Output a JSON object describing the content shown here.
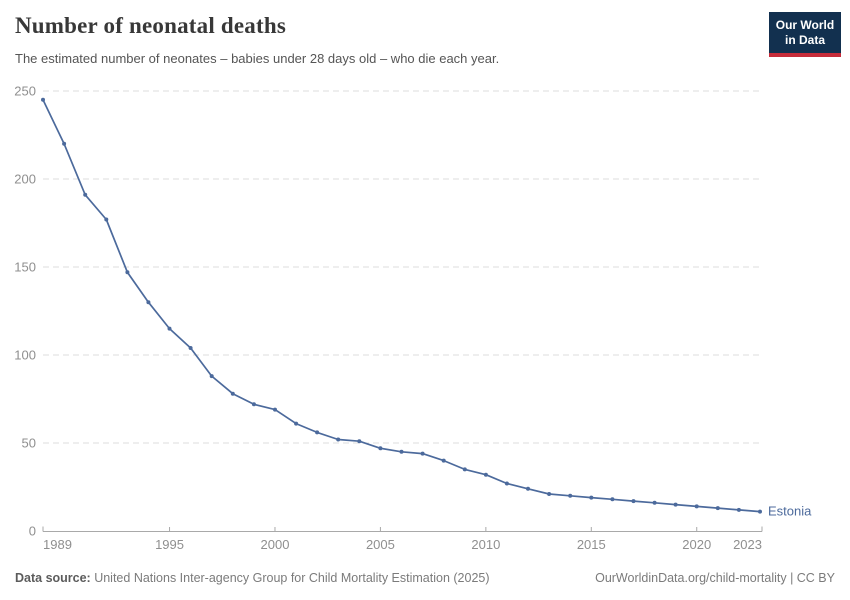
{
  "header": {
    "title": "Number of neonatal deaths",
    "subtitle": "The estimated number of neonates – babies under 28 days old – who die each year.",
    "logo": {
      "line1": "Our World",
      "line2": "in Data",
      "bg_color": "#12304f",
      "accent_color": "#c62c3a"
    }
  },
  "chart_data": {
    "type": "line",
    "title": "Number of neonatal deaths",
    "xlabel": "",
    "ylabel": "",
    "xlim": [
      1989,
      2023
    ],
    "ylim": [
      0,
      250
    ],
    "xticks": [
      1989,
      1995,
      2000,
      2005,
      2010,
      2015,
      2020,
      2023
    ],
    "yticks": [
      0,
      50,
      100,
      150,
      200,
      250
    ],
    "grid": "horizontal-dashed",
    "legend_position": "end-of-line-label",
    "x": [
      1989,
      1990,
      1991,
      1992,
      1993,
      1994,
      1995,
      1996,
      1997,
      1998,
      1999,
      2000,
      2001,
      2002,
      2003,
      2004,
      2005,
      2006,
      2007,
      2008,
      2009,
      2010,
      2011,
      2012,
      2013,
      2014,
      2015,
      2016,
      2017,
      2018,
      2019,
      2020,
      2021,
      2022,
      2023
    ],
    "series": [
      {
        "name": "Estonia",
        "color": "#4c6a9c",
        "values": [
          245,
          220,
          191,
          177,
          147,
          130,
          115,
          104,
          88,
          78,
          72,
          69,
          61,
          56,
          52,
          51,
          47,
          45,
          44,
          40,
          35,
          32,
          27,
          24,
          21,
          20,
          19,
          18,
          17,
          16,
          15,
          14,
          13,
          12,
          11
        ]
      }
    ],
    "colors": {
      "grid": "#dcdcdc",
      "axis": "#a9a9a9",
      "tick_label": "#8f8f8f"
    }
  },
  "footer": {
    "datasource_label": "Data source:",
    "datasource_value": " United Nations Inter-agency Group for Child Mortality Estimation (2025)",
    "link": "OurWorldinData.org/child-mortality | CC BY"
  }
}
